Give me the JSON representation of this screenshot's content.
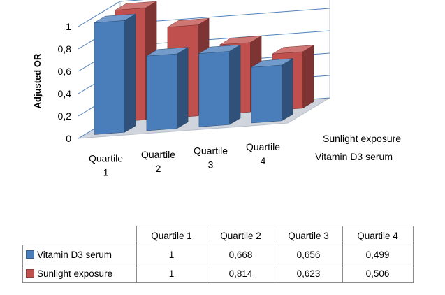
{
  "chart_data": {
    "type": "bar",
    "title": "",
    "ylabel": "Adjusted OR",
    "xlabel": "",
    "categories": [
      "Quartile 1",
      "Quartile 2",
      "Quartile 3",
      "Quartile 4"
    ],
    "category_axis_labels": [
      [
        "Quartile",
        "1"
      ],
      [
        "Quartile",
        "2"
      ],
      [
        "Quartile",
        "3"
      ],
      [
        "Quartile",
        "4"
      ]
    ],
    "series": [
      {
        "name": "Vitamin D3 serum",
        "color": "#4a7ebb",
        "values": [
          1,
          0.668,
          0.656,
          0.499
        ]
      },
      {
        "name": "Sunlight exposure",
        "color": "#c0504d",
        "values": [
          1,
          0.814,
          0.623,
          0.506
        ]
      }
    ],
    "ylim": [
      0,
      1
    ],
    "yticks": [
      "0",
      "0,2",
      "0,4",
      "0,6",
      "0,8",
      "1"
    ],
    "grid": true,
    "legend": "data-table-below"
  },
  "table": {
    "header": [
      "Quartile 1",
      "Quartile 2",
      "Quartile 3",
      "Quartile 4"
    ],
    "rows": [
      {
        "label": "Vitamin D3 serum",
        "cells": [
          "1",
          "0,668",
          "0,656",
          "0,499"
        ]
      },
      {
        "label": "Sunlight exposure",
        "cells": [
          "1",
          "0,814",
          "0,623",
          "0,506"
        ]
      }
    ]
  }
}
